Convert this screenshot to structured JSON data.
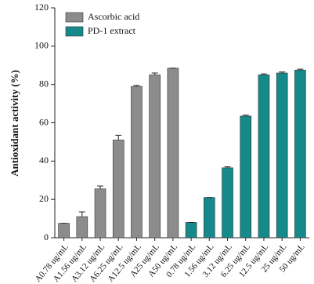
{
  "chart_data": {
    "type": "bar",
    "ylabel": "Antioxidant activity (%)",
    "categories": [
      "A0.78 ug/mL",
      "A1.56 ug/mL",
      "A3.12 ug/mL",
      "A6.25 ug/mL",
      "A12.5 ug/mL",
      "A25 ug/mL",
      "A50 ug/mL",
      "0.78 ug/mL",
      "1.56 ug/mL",
      "3.12 ug/mL",
      "6.25 ug/mL",
      "12.5 ug/mL",
      "25 ug/mL",
      "50 ug/mL"
    ],
    "series": [
      {
        "name": "Ascorbic acid",
        "color": "#8c8c8c",
        "values": [
          7.5,
          11,
          25.5,
          51,
          79,
          85,
          88.5,
          null,
          null,
          null,
          null,
          null,
          null,
          null
        ],
        "errors": [
          0,
          2.5,
          1.5,
          2.5,
          0.5,
          1,
          0,
          null,
          null,
          null,
          null,
          null,
          null,
          null
        ]
      },
      {
        "name": "PD-1 extract",
        "color": "#168a8a",
        "values": [
          null,
          null,
          null,
          null,
          null,
          null,
          null,
          8,
          21,
          36.5,
          63.5,
          85,
          86,
          87.5
        ],
        "errors": [
          null,
          null,
          null,
          null,
          null,
          null,
          null,
          0,
          0,
          0.5,
          0.5,
          0.5,
          0.5,
          0.5
        ]
      }
    ],
    "ylim": [
      0,
      120
    ],
    "yticks": [
      0,
      20,
      40,
      60,
      80,
      100,
      120
    ],
    "legend": "upper left"
  }
}
